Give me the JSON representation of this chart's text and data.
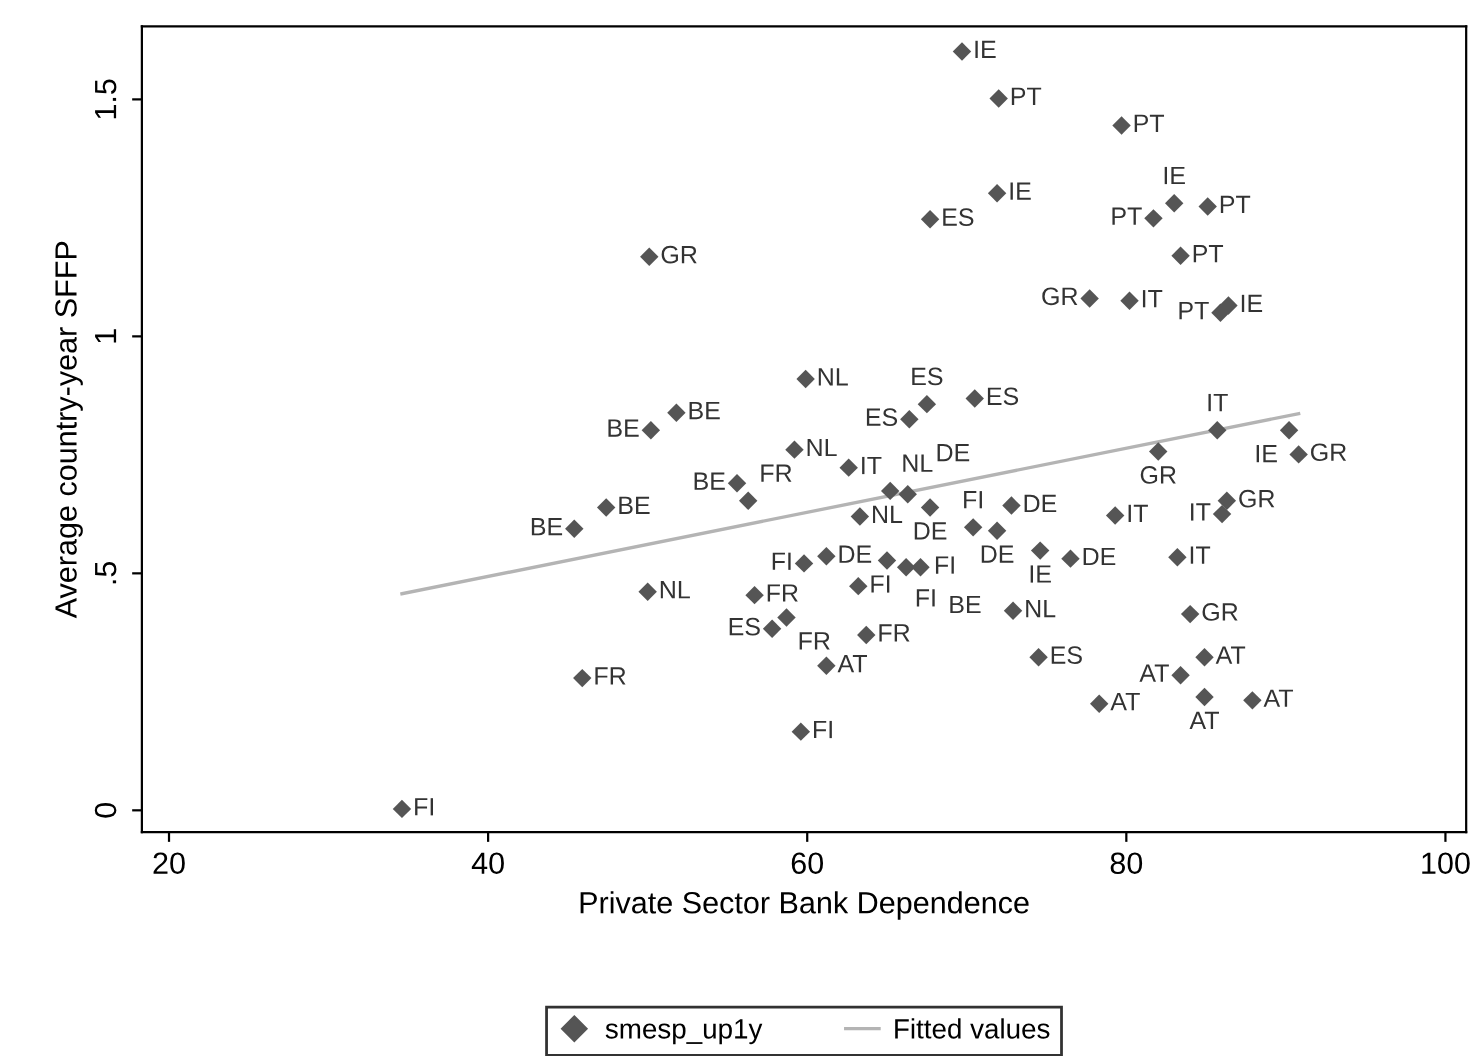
{
  "chart_data": {
    "type": "scatter",
    "xlabel": "Private Sector Bank Dependence",
    "ylabel": "Average country-year SFFP",
    "xlim": [
      18.3,
      101.3
    ],
    "ylim": [
      -0.046,
      1.654
    ],
    "xticks": [
      20,
      40,
      60,
      80,
      100
    ],
    "yticks": [
      0,
      {
        "value": 0.5,
        "label": ".5"
      },
      1,
      1.5
    ],
    "grid": false,
    "legend": "bottom",
    "series": [
      {
        "name": "smesp_up1y",
        "marker": "diamond",
        "color": "#555555",
        "x": [
          50.1,
          59.9,
          51.8,
          50.2,
          59.2,
          62.6,
          55.6,
          56.3,
          47.4,
          63.3,
          65.2,
          66.3,
          69.7,
          72.0,
          79.7,
          71.9,
          67.7,
          83.0,
          81.7,
          85.1,
          83.4,
          77.7,
          80.2,
          85.9,
          86.4,
          70.5,
          67.5,
          66.4,
          85.7,
          90.2,
          82.0,
          90.8,
          67.7,
          72.8,
          79.3,
          86.3,
          86.0,
          70.4,
          71.9,
          74.6,
          76.5,
          83.2,
          72.9,
          84.0,
          74.5,
          84.9,
          83.4,
          78.3,
          84.9,
          87.9,
          45.4,
          50.0,
          56.7,
          58.7,
          57.8,
          63.7,
          61.2,
          45.9,
          59.6,
          34.6,
          59.8,
          61.2,
          63.2,
          65.0,
          66.2,
          67.1
        ],
        "values": [
          1.168,
          0.91,
          0.839,
          0.802,
          0.761,
          0.723,
          0.69,
          0.653,
          0.639,
          0.62,
          0.674,
          0.667,
          1.601,
          1.502,
          1.445,
          1.302,
          1.247,
          1.281,
          1.249,
          1.274,
          1.17,
          1.08,
          1.075,
          1.05,
          1.065,
          0.869,
          0.857,
          0.825,
          0.802,
          0.802,
          0.757,
          0.751,
          0.639,
          0.643,
          0.622,
          0.653,
          0.625,
          0.597,
          0.59,
          0.548,
          0.531,
          0.534,
          0.421,
          0.414,
          0.323,
          0.323,
          0.285,
          0.225,
          0.239,
          0.232,
          0.594,
          0.461,
          0.454,
          0.407,
          0.383,
          0.37,
          0.305,
          0.279,
          0.166,
          0.003,
          0.521,
          0.536,
          0.473,
          0.527,
          0.513,
          0.513
        ],
        "value_labels": [
          "GR",
          "NL",
          "BE",
          "BE",
          "NL",
          "IT",
          "BE",
          "FR",
          "BE",
          "NL",
          "NL",
          "DE",
          "IE",
          "PT",
          "PT",
          "IE",
          "ES",
          "IE",
          "PT",
          "PT",
          "PT",
          "GR",
          "IT",
          "PT",
          "IE",
          "ES",
          "ES",
          "ES",
          "IT",
          "IE",
          "GR",
          "GR",
          "DE",
          "DE",
          "IT",
          "GR",
          "IT",
          "FI",
          "DE",
          "IE",
          "DE",
          "IT",
          "NL",
          "GR",
          "ES",
          "AT",
          "AT",
          "AT",
          "AT",
          "AT",
          "BE",
          "NL",
          "FR",
          "FR",
          "ES",
          "FR",
          "AT",
          "FR",
          "FI",
          "FI",
          "FI",
          "DE",
          "FI",
          "FI",
          "FI",
          "BE"
        ]
      },
      {
        "name": "Fitted values",
        "type": "line",
        "marker": "none",
        "line_style": "solid",
        "color": "#b4b4b4",
        "x": [
          34.6,
          90.8
        ],
        "values": [
          0.457,
          0.837
        ]
      }
    ]
  }
}
